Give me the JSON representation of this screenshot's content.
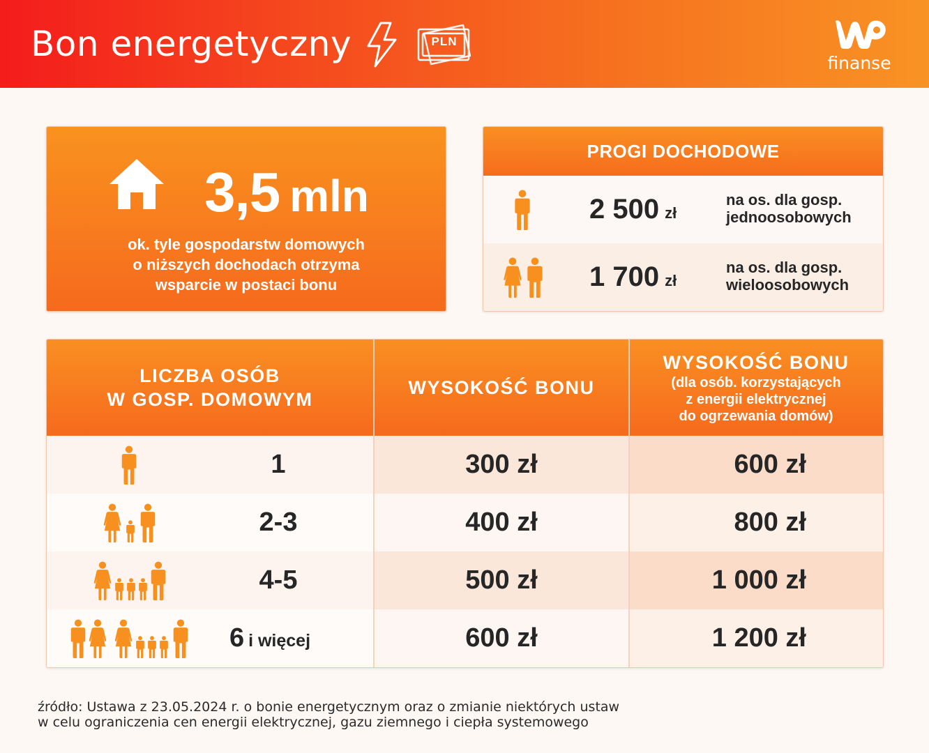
{
  "header": {
    "title": "Bon energetyczny",
    "banknote_label": "PLN",
    "logo_text": "finanse",
    "accent_start": "#f41c1c",
    "accent_end": "#f99324"
  },
  "stat": {
    "value": "3,5",
    "unit": "mln",
    "desc_lines": [
      "ok. tyle gospodarstw domowych",
      "o niższych dochodach otrzyma",
      "wsparcie w postaci bonu"
    ]
  },
  "thresholds": {
    "title": "PROGI DOCHODOWE",
    "rows": [
      {
        "amount": "2 500",
        "currency": "zł",
        "note_lines": [
          "na os. dla gosp.",
          "jednoosobowych"
        ]
      },
      {
        "amount": "1 700",
        "currency": "zł",
        "note_lines": [
          "na os. dla gosp.",
          "wieloosobowych"
        ]
      }
    ]
  },
  "table": {
    "headers": {
      "people_lines": [
        "LICZBA OSÓB",
        "W GOSP. DOMOWYM"
      ],
      "amount": "WYSOKOŚĆ BONU",
      "heating_main": "WYSOKOŚĆ BONU",
      "heating_sub_lines": [
        "(dla osób. korzystających",
        "z energii elektrycznej",
        "do ogrzewania domów)"
      ]
    },
    "rows": [
      {
        "count": "1",
        "extra": "",
        "amount": "300 zł",
        "heating": "600 zł"
      },
      {
        "count": "2-3",
        "extra": "",
        "amount": "400 zł",
        "heating": "800 zł"
      },
      {
        "count": "4-5",
        "extra": "",
        "amount": "500 zł",
        "heating": "1 000 zł"
      },
      {
        "count": "6",
        "extra": "i więcej",
        "amount": "600 zł",
        "heating": "1 200 zł"
      }
    ]
  },
  "source_lines": [
    "źródło: Ustawa z 23.05.2024 r. o bonie energetycznym oraz o zmianie niektórych ustaw",
    "w celu ograniczenia cen energii elektrycznej, gazu ziemnego i ciepła systemowego"
  ],
  "icons": [
    "lightning-bolt-icon",
    "banknote-icon",
    "wp-logo-icon",
    "house-icon",
    "man-icon",
    "woman-icon",
    "child-icon"
  ]
}
